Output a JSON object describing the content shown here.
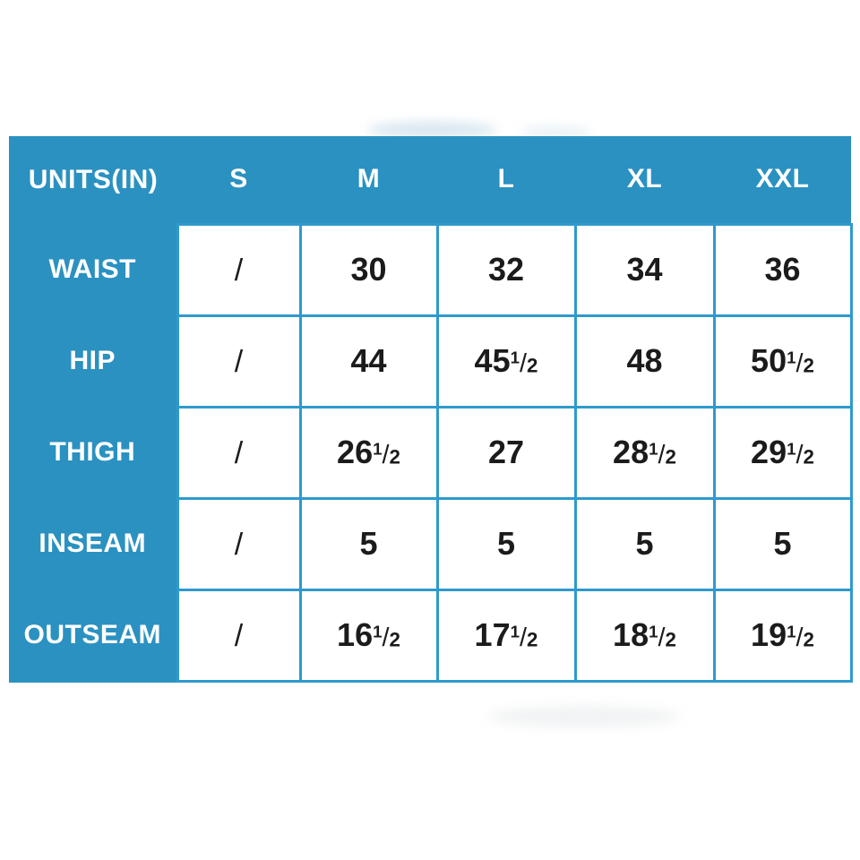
{
  "chart_data": {
    "type": "table",
    "unit_header": "UNITS(IN)",
    "columns": [
      "S",
      "M",
      "L",
      "XL",
      "XXL"
    ],
    "rows": [
      {
        "label": "WAIST",
        "values": [
          "/",
          "30",
          "32",
          "34",
          "36"
        ]
      },
      {
        "label": "HIP",
        "values": [
          "/",
          "44",
          "45 1/2",
          "48",
          "50 1/2"
        ]
      },
      {
        "label": "THIGH",
        "values": [
          "/",
          "26 1/2",
          "27",
          "28 1/2",
          "29 1/2"
        ]
      },
      {
        "label": "INSEAM",
        "values": [
          "/",
          "5",
          "5",
          "5",
          "5"
        ]
      },
      {
        "label": "OUTSEAM",
        "values": [
          "/",
          "16 1/2",
          "17 1/2",
          "18 1/2",
          "19 1/2"
        ]
      }
    ],
    "layout_hints": {
      "header_position": "top-row-and-left-column",
      "grid": "on",
      "empty_value_marker": "/"
    }
  },
  "colors": {
    "panel_blue": "#2B91C1",
    "grid_line_blue": "#2E9ACD",
    "header_text": "#FFFFFF",
    "value_text": "#1B1B1B",
    "page_background": "#FFFFFF"
  }
}
